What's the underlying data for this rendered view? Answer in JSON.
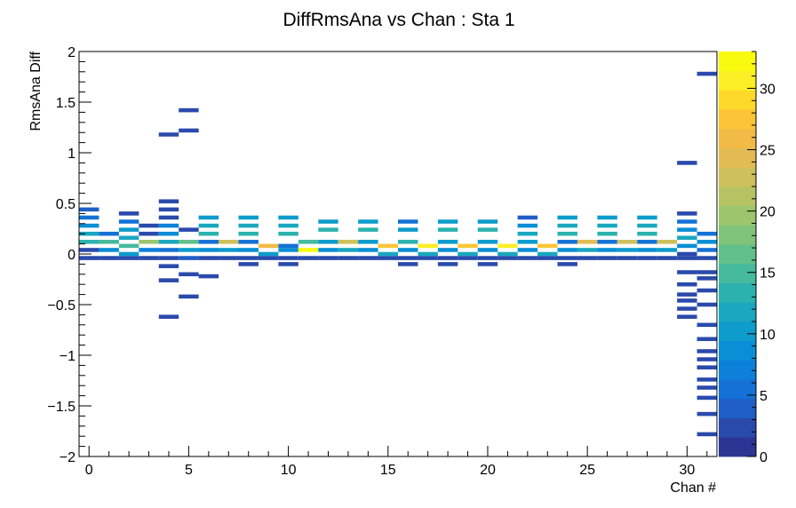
{
  "chart_data": {
    "type": "heatmap",
    "title": "DiffRmsAna vs Chan : Sta 1",
    "xlabel": "Chan #",
    "ylabel": "RmsAna Diff",
    "xlim": [
      -0.5,
      31.5
    ],
    "ylim": [
      -2,
      2
    ],
    "x_ticks": [
      {
        "value": 0,
        "label": "0"
      },
      {
        "value": 5,
        "label": "5"
      },
      {
        "value": 10,
        "label": "10"
      },
      {
        "value": 15,
        "label": "15"
      },
      {
        "value": 20,
        "label": "20"
      },
      {
        "value": 25,
        "label": "25"
      },
      {
        "value": 30,
        "label": "30"
      }
    ],
    "y_ticks": [
      {
        "value": 2,
        "label": "2"
      },
      {
        "value": 1.5,
        "label": "1.5"
      },
      {
        "value": 1,
        "label": "1"
      },
      {
        "value": 0.5,
        "label": "0.5"
      },
      {
        "value": 0,
        "label": "0"
      },
      {
        "value": -0.5,
        "label": "−0.5"
      },
      {
        "value": -1,
        "label": "−1"
      },
      {
        "value": -1.5,
        "label": "−1.5"
      },
      {
        "value": -2,
        "label": "−2"
      }
    ],
    "colorbar": {
      "min": 0,
      "max": 33,
      "ticks": [
        {
          "value": 0,
          "label": "0"
        },
        {
          "value": 5,
          "label": "5"
        },
        {
          "value": 10,
          "label": "10"
        },
        {
          "value": 15,
          "label": "15"
        },
        {
          "value": 20,
          "label": "20"
        },
        {
          "value": 25,
          "label": "25"
        },
        {
          "value": 30,
          "label": "30"
        }
      ]
    },
    "palette": [
      "#2c3593",
      "#2a4aab",
      "#1f5ec7",
      "#1571d6",
      "#0d80da",
      "#0a8ed6",
      "#0d9ccc",
      "#1aa7bf",
      "#2cb2ae",
      "#45ba9c",
      "#62c08a",
      "#80c47b",
      "#9cc56d",
      "#b6c363",
      "#cec05b",
      "#e2bc52",
      "#f2bb45",
      "#fbc537",
      "#fdd92c",
      "#fcee24",
      "#f9fb0e"
    ],
    "bin_height": 0.04,
    "cells": [
      [
        0,
        0.44,
        4
      ],
      [
        0,
        0.36,
        6
      ],
      [
        0,
        0.28,
        9
      ],
      [
        0,
        0.2,
        12
      ],
      [
        0,
        0.12,
        14
      ],
      [
        0,
        0.04,
        3
      ],
      [
        0,
        -0.04,
        2
      ],
      [
        1,
        0.2,
        5
      ],
      [
        1,
        0.12,
        15
      ],
      [
        1,
        0.04,
        8
      ],
      [
        1,
        -0.04,
        3
      ],
      [
        2,
        0.4,
        3
      ],
      [
        2,
        0.32,
        6
      ],
      [
        2,
        0.24,
        10
      ],
      [
        2,
        0.16,
        12
      ],
      [
        2,
        0.08,
        15
      ],
      [
        2,
        0.0,
        10
      ],
      [
        2,
        -0.04,
        3
      ],
      [
        3,
        0.28,
        2
      ],
      [
        3,
        0.2,
        3
      ],
      [
        3,
        0.12,
        20
      ],
      [
        3,
        0.04,
        7
      ],
      [
        3,
        -0.04,
        2
      ],
      [
        4,
        0.52,
        2
      ],
      [
        4,
        0.44,
        3
      ],
      [
        4,
        0.36,
        2
      ],
      [
        4,
        0.28,
        7
      ],
      [
        4,
        0.2,
        8
      ],
      [
        4,
        0.12,
        12
      ],
      [
        4,
        0.04,
        6
      ],
      [
        4,
        -0.04,
        2
      ],
      [
        4,
        -0.12,
        2
      ],
      [
        4,
        -0.26,
        2
      ],
      [
        4,
        1.18,
        2
      ],
      [
        4,
        -0.62,
        2
      ],
      [
        5,
        0.24,
        2
      ],
      [
        5,
        0.12,
        16
      ],
      [
        5,
        0.04,
        10
      ],
      [
        5,
        -0.04,
        4
      ],
      [
        5,
        -0.2,
        3
      ],
      [
        5,
        1.42,
        2
      ],
      [
        5,
        1.22,
        2
      ],
      [
        5,
        -0.42,
        2
      ],
      [
        6,
        0.36,
        10
      ],
      [
        6,
        0.28,
        12
      ],
      [
        6,
        0.2,
        14
      ],
      [
        6,
        0.12,
        5
      ],
      [
        6,
        0.04,
        9
      ],
      [
        6,
        -0.04,
        3
      ],
      [
        6,
        -0.22,
        2
      ],
      [
        7,
        0.12,
        23
      ],
      [
        7,
        0.04,
        10
      ],
      [
        7,
        -0.04,
        3
      ],
      [
        8,
        0.36,
        10
      ],
      [
        8,
        0.28,
        12
      ],
      [
        8,
        0.2,
        14
      ],
      [
        8,
        0.12,
        5
      ],
      [
        8,
        0.04,
        9
      ],
      [
        8,
        -0.04,
        3
      ],
      [
        8,
        -0.1,
        2
      ],
      [
        9,
        0.08,
        26
      ],
      [
        9,
        0.0,
        10
      ],
      [
        9,
        -0.04,
        3
      ],
      [
        10,
        0.36,
        10
      ],
      [
        10,
        0.28,
        12
      ],
      [
        10,
        0.2,
        14
      ],
      [
        10,
        0.08,
        5
      ],
      [
        10,
        0.04,
        9
      ],
      [
        10,
        -0.04,
        3
      ],
      [
        10,
        -0.1,
        2
      ],
      [
        11,
        0.12,
        15
      ],
      [
        11,
        0.04,
        32
      ],
      [
        11,
        -0.04,
        3
      ],
      [
        12,
        0.32,
        10
      ],
      [
        12,
        0.24,
        13
      ],
      [
        12,
        0.12,
        10
      ],
      [
        12,
        0.04,
        8
      ],
      [
        12,
        -0.04,
        3
      ],
      [
        13,
        0.12,
        22
      ],
      [
        13,
        0.04,
        12
      ],
      [
        13,
        -0.04,
        3
      ],
      [
        14,
        0.32,
        10
      ],
      [
        14,
        0.24,
        13
      ],
      [
        14,
        0.12,
        10
      ],
      [
        14,
        0.04,
        8
      ],
      [
        14,
        -0.04,
        3
      ],
      [
        15,
        0.08,
        28
      ],
      [
        15,
        0.0,
        12
      ],
      [
        15,
        -0.04,
        3
      ],
      [
        16,
        0.32,
        6
      ],
      [
        16,
        0.24,
        10
      ],
      [
        16,
        0.12,
        13
      ],
      [
        16,
        0.04,
        8
      ],
      [
        16,
        -0.04,
        3
      ],
      [
        16,
        -0.1,
        2
      ],
      [
        17,
        0.08,
        30
      ],
      [
        17,
        0.0,
        12
      ],
      [
        17,
        -0.04,
        3
      ],
      [
        18,
        0.32,
        10
      ],
      [
        18,
        0.24,
        13
      ],
      [
        18,
        0.12,
        10
      ],
      [
        18,
        0.04,
        8
      ],
      [
        18,
        -0.04,
        3
      ],
      [
        18,
        -0.1,
        2
      ],
      [
        19,
        0.08,
        27
      ],
      [
        19,
        0.0,
        12
      ],
      [
        19,
        -0.04,
        3
      ],
      [
        20,
        0.32,
        10
      ],
      [
        20,
        0.24,
        13
      ],
      [
        20,
        0.12,
        10
      ],
      [
        20,
        0.04,
        8
      ],
      [
        20,
        -0.04,
        3
      ],
      [
        20,
        -0.1,
        2
      ],
      [
        21,
        0.08,
        31
      ],
      [
        21,
        0.0,
        12
      ],
      [
        21,
        -0.04,
        3
      ],
      [
        22,
        0.36,
        4
      ],
      [
        22,
        0.28,
        9
      ],
      [
        22,
        0.2,
        12
      ],
      [
        22,
        0.12,
        10
      ],
      [
        22,
        0.04,
        8
      ],
      [
        22,
        -0.04,
        3
      ],
      [
        23,
        0.08,
        27
      ],
      [
        23,
        0.0,
        12
      ],
      [
        23,
        -0.04,
        3
      ],
      [
        24,
        0.36,
        10
      ],
      [
        24,
        0.28,
        12
      ],
      [
        24,
        0.2,
        14
      ],
      [
        24,
        0.12,
        5
      ],
      [
        24,
        0.04,
        9
      ],
      [
        24,
        -0.04,
        3
      ],
      [
        24,
        -0.1,
        2
      ],
      [
        25,
        0.12,
        24
      ],
      [
        25,
        0.04,
        12
      ],
      [
        25,
        -0.04,
        3
      ],
      [
        26,
        0.36,
        10
      ],
      [
        26,
        0.28,
        12
      ],
      [
        26,
        0.2,
        14
      ],
      [
        26,
        0.12,
        5
      ],
      [
        26,
        0.04,
        9
      ],
      [
        26,
        -0.04,
        3
      ],
      [
        27,
        0.12,
        22
      ],
      [
        27,
        0.04,
        10
      ],
      [
        27,
        -0.04,
        3
      ],
      [
        28,
        0.36,
        10
      ],
      [
        28,
        0.28,
        12
      ],
      [
        28,
        0.2,
        14
      ],
      [
        28,
        0.12,
        5
      ],
      [
        28,
        0.04,
        9
      ],
      [
        28,
        -0.04,
        3
      ],
      [
        29,
        0.12,
        22
      ],
      [
        29,
        0.04,
        10
      ],
      [
        29,
        -0.04,
        3
      ],
      [
        30,
        0.4,
        3
      ],
      [
        30,
        0.32,
        6
      ],
      [
        30,
        0.24,
        9
      ],
      [
        30,
        0.16,
        12
      ],
      [
        30,
        0.08,
        8
      ],
      [
        30,
        0.0,
        3
      ],
      [
        30,
        -0.04,
        2
      ],
      [
        30,
        0.9,
        2
      ],
      [
        30,
        -0.18,
        2
      ],
      [
        30,
        -0.3,
        2
      ],
      [
        30,
        -0.4,
        2
      ],
      [
        30,
        -0.46,
        2
      ],
      [
        30,
        -0.54,
        2
      ],
      [
        30,
        -0.62,
        2
      ],
      [
        31,
        0.2,
        5
      ],
      [
        31,
        0.12,
        8
      ],
      [
        31,
        0.04,
        5
      ],
      [
        31,
        -0.04,
        3
      ],
      [
        31,
        -0.18,
        2
      ],
      [
        31,
        -0.24,
        2
      ],
      [
        31,
        -0.36,
        2
      ],
      [
        31,
        -0.5,
        2
      ],
      [
        31,
        -0.7,
        2
      ],
      [
        31,
        -0.84,
        2
      ],
      [
        31,
        -0.96,
        2
      ],
      [
        31,
        -1.04,
        2
      ],
      [
        31,
        -1.12,
        2
      ],
      [
        31,
        -1.24,
        2
      ],
      [
        31,
        -1.32,
        2
      ],
      [
        31,
        -1.42,
        2
      ],
      [
        31,
        -1.58,
        2
      ],
      [
        31,
        -1.78,
        2
      ],
      [
        31,
        1.78,
        2
      ]
    ]
  }
}
